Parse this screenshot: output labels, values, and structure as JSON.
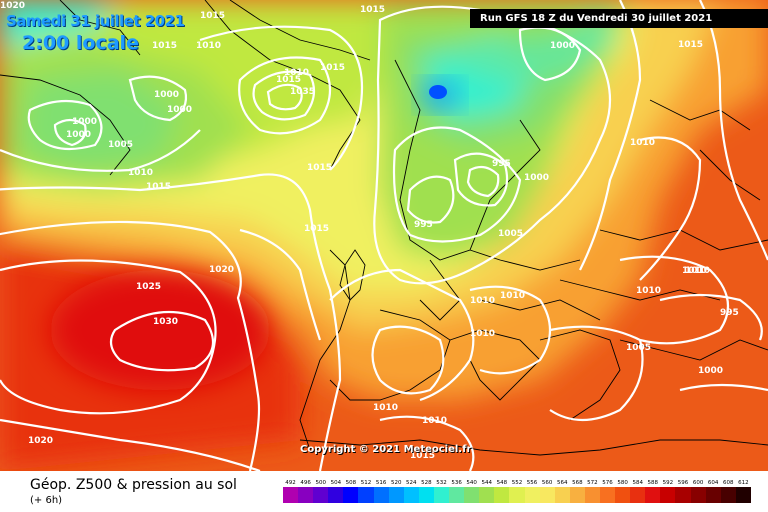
{
  "header": {
    "date_line": "Samedi 31 juillet 2021",
    "time_line": "2:00 locale",
    "run_info": "Run GFS 18 Z du Vendredi 30 juillet 2021"
  },
  "copyright": "Copyright © 2021 Meteociel.fr",
  "legend": {
    "title": "Géop. Z500 & pression au sol",
    "subtitle": "(+ 6h)",
    "scale_values": [
      "492",
      "496",
      "500",
      "504",
      "508",
      "512",
      "516",
      "520",
      "524",
      "528",
      "532",
      "536",
      "540",
      "544",
      "548",
      "552",
      "556",
      "560",
      "564",
      "568",
      "572",
      "576",
      "580",
      "584",
      "588",
      "592",
      "596",
      "600",
      "604",
      "608",
      "612"
    ],
    "scale_colors": [
      "#b000b0",
      "#8800c0",
      "#6000d0",
      "#3000e0",
      "#0000ff",
      "#0040ff",
      "#0070ff",
      "#0098ff",
      "#00c0ff",
      "#00e0f0",
      "#30f0d0",
      "#60e8a0",
      "#80e070",
      "#a0e050",
      "#c0e840",
      "#e0f050",
      "#f0f060",
      "#f8e860",
      "#f8d050",
      "#f8b040",
      "#f89030",
      "#f87020",
      "#f05010",
      "#e83010",
      "#e01010",
      "#c80000",
      "#a80000",
      "#880000",
      "#680000",
      "#480000",
      "#200000"
    ]
  },
  "isobar_labels": [
    {
      "text": "1020"
    },
    {
      "text": "1015"
    },
    {
      "text": "1015"
    },
    {
      "text": "1010"
    },
    {
      "text": "1015"
    },
    {
      "text": "1015"
    },
    {
      "text": "1010"
    },
    {
      "text": "1000"
    },
    {
      "text": "1015"
    },
    {
      "text": "1035"
    },
    {
      "text": "1000"
    },
    {
      "text": "1000"
    },
    {
      "text": "1000"
    },
    {
      "text": "1005"
    },
    {
      "text": "1010"
    },
    {
      "text": "1015"
    },
    {
      "text": "1015"
    },
    {
      "text": "1015"
    },
    {
      "text": "995"
    },
    {
      "text": "1000"
    },
    {
      "text": "995"
    },
    {
      "text": "1005"
    },
    {
      "text": "1010"
    },
    {
      "text": "1010"
    },
    {
      "text": "1015"
    },
    {
      "text": "1000"
    },
    {
      "text": "1020"
    },
    {
      "text": "1025"
    },
    {
      "text": "1030"
    },
    {
      "text": "1010"
    },
    {
      "text": "1010"
    },
    {
      "text": "1010"
    },
    {
      "text": "1010"
    },
    {
      "text": "1010"
    },
    {
      "text": "995"
    },
    {
      "text": "1005"
    },
    {
      "text": "1000"
    },
    {
      "text": "1010"
    },
    {
      "text": "1010"
    },
    {
      "text": "1020"
    },
    {
      "text": "1015"
    }
  ]
}
